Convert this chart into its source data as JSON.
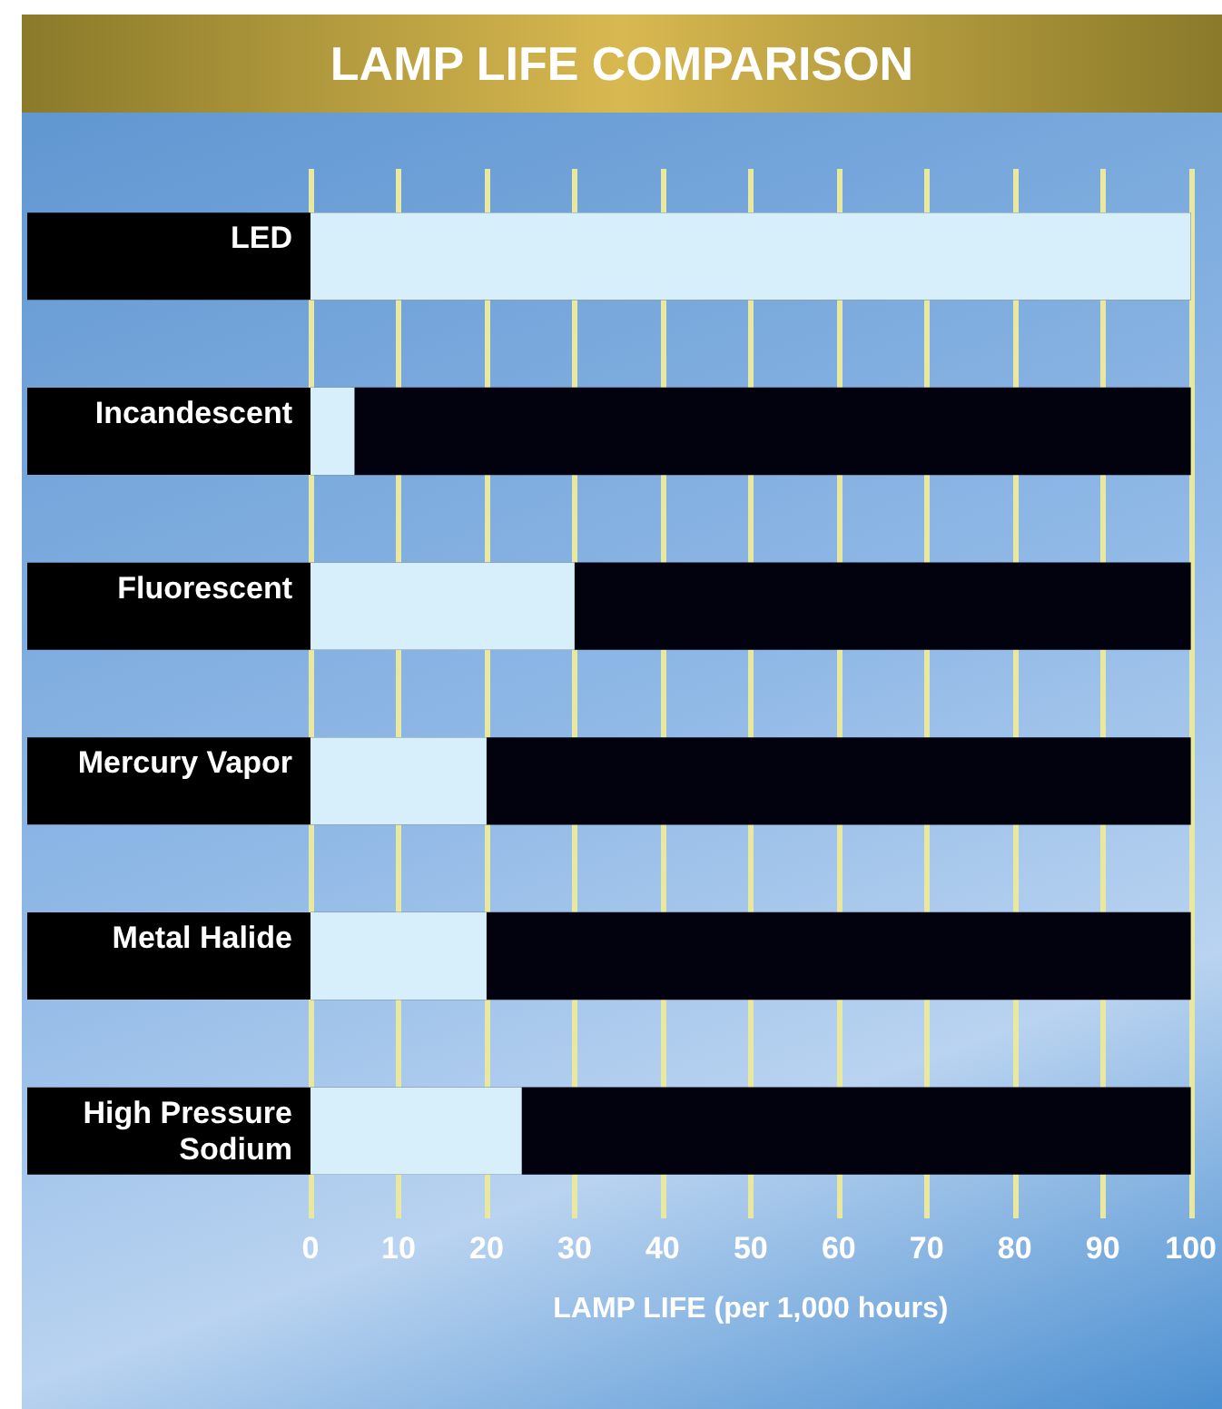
{
  "chart_data": {
    "type": "bar",
    "orientation": "horizontal",
    "title": "LAMP LIFE COMPARISON",
    "xlabel": "LAMP LIFE (per 1,000 hours)",
    "categories": [
      "LED",
      "Incandescent",
      "Fluorescent",
      "Mercury Vapor",
      "Metal Halide",
      "High Pressure\nSodium"
    ],
    "values": [
      100,
      5,
      30,
      20,
      20,
      24
    ],
    "color": "#d6effa",
    "xlim": [
      0,
      100
    ],
    "xticks": [
      0,
      10,
      20,
      30,
      40,
      50,
      60,
      70,
      80,
      90,
      100
    ],
    "grid": "x"
  }
}
